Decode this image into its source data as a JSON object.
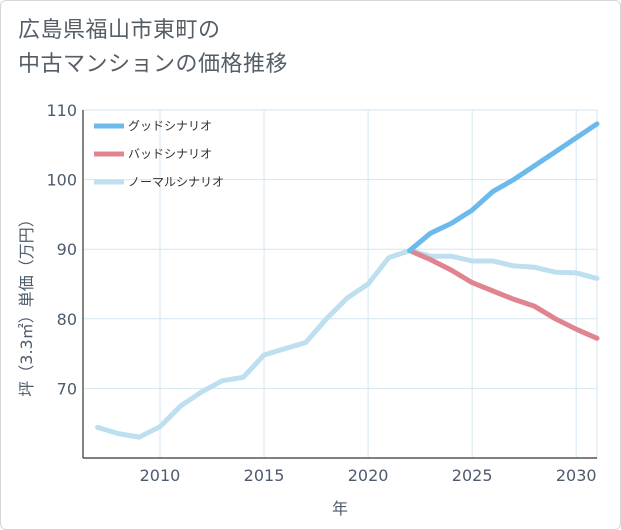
{
  "title_line1": "広島県福山市東町の",
  "title_line2": "中古マンションの価格推移",
  "chart_data": {
    "type": "line",
    "xlabel": "年",
    "ylabel": "坪（3.3㎡）単価（万円）",
    "xlim": [
      2006.3,
      2031
    ],
    "ylim": [
      60,
      110
    ],
    "x_ticks": [
      2010,
      2015,
      2020,
      2025,
      2030
    ],
    "y_ticks": [
      70,
      80,
      90,
      100,
      110
    ],
    "grid": true,
    "legend_position": "top-left",
    "series": [
      {
        "name": "グッドシナリオ",
        "color": "#6cb9ec",
        "x": [
          2022,
          2023,
          2024,
          2025,
          2026,
          2027,
          2028,
          2029,
          2030,
          2031
        ],
        "y": [
          89.8,
          92.3,
          93.7,
          95.6,
          98.3,
          100.0,
          102.0,
          104.0,
          106.0,
          108.0
        ]
      },
      {
        "name": "バッドシナリオ",
        "color": "#e0848f",
        "x": [
          2022,
          2023,
          2024,
          2025,
          2026,
          2027,
          2028,
          2029,
          2030,
          2031
        ],
        "y": [
          89.8,
          88.5,
          87.0,
          85.2,
          84.0,
          82.8,
          81.8,
          80.0,
          78.5,
          77.2
        ]
      },
      {
        "name": "ノーマルシナリオ",
        "color": "#bddff0",
        "x": [
          2007,
          2008,
          2009,
          2010,
          2011,
          2012,
          2013,
          2014,
          2015,
          2016,
          2017,
          2018,
          2019,
          2020,
          2021,
          2022,
          2023,
          2024,
          2025,
          2026,
          2027,
          2028,
          2029,
          2030,
          2031
        ],
        "y": [
          64.4,
          63.5,
          63.0,
          64.5,
          67.5,
          69.5,
          71.1,
          71.6,
          74.8,
          75.7,
          76.6,
          80.0,
          83.0,
          85.0,
          88.8,
          89.8,
          89.0,
          89.0,
          88.3,
          88.3,
          87.6,
          87.4,
          86.7,
          86.6,
          85.8
        ]
      }
    ]
  }
}
